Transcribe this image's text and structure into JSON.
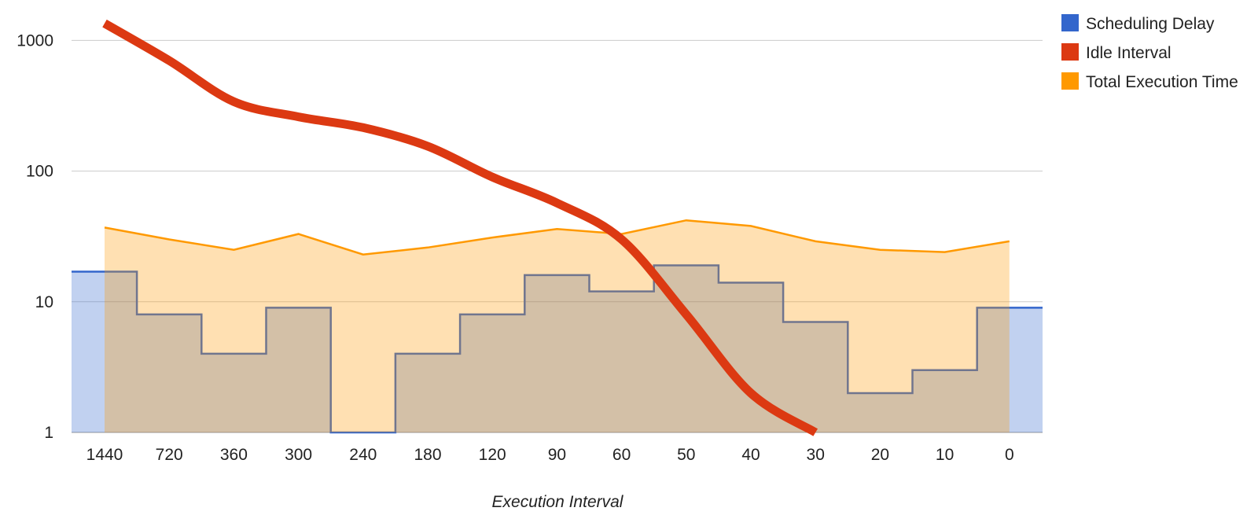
{
  "chart_data": {
    "type": "area",
    "title": "",
    "xlabel": "Execution Interval",
    "ylabel": "",
    "yscale": "log",
    "ylim": [
      1,
      1000
    ],
    "yticks": [
      "1",
      "10",
      "100",
      "1000"
    ],
    "categories": [
      "1440",
      "720",
      "360",
      "300",
      "240",
      "180",
      "120",
      "90",
      "60",
      "50",
      "40",
      "30",
      "20",
      "10",
      "0"
    ],
    "legend_position": "top-right",
    "grid": true,
    "series": [
      {
        "name": "Scheduling Delay",
        "type": "stepped-area",
        "color": "#3366cc",
        "values": [
          17,
          8,
          4,
          9,
          1,
          4,
          8,
          16,
          12,
          19,
          14,
          7,
          2,
          3,
          9
        ]
      },
      {
        "name": "Idle Interval",
        "type": "line",
        "color": "#dc3912",
        "values": [
          1350,
          700,
          340,
          260,
          215,
          155,
          90,
          57,
          30,
          8,
          2,
          1,
          null,
          null,
          null
        ]
      },
      {
        "name": "Total Execution Time",
        "type": "area",
        "color": "#ff9900",
        "values": [
          37,
          30,
          25,
          33,
          23,
          26,
          31,
          36,
          33,
          42,
          38,
          29,
          25,
          24,
          29
        ]
      }
    ]
  }
}
